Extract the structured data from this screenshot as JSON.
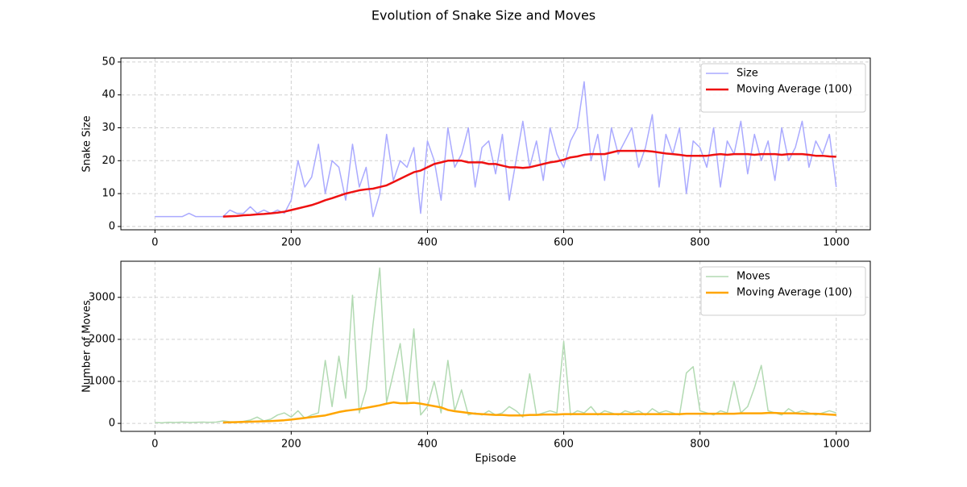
{
  "title": "Evolution of Snake Size and Moves",
  "chart_data": [
    {
      "type": "line",
      "ylabel": "Snake Size",
      "x": [
        0,
        10,
        20,
        30,
        40,
        50,
        60,
        70,
        80,
        90,
        100,
        110,
        120,
        130,
        140,
        150,
        160,
        170,
        180,
        190,
        200,
        210,
        220,
        230,
        240,
        250,
        260,
        270,
        280,
        290,
        300,
        310,
        320,
        330,
        340,
        350,
        360,
        370,
        380,
        390,
        400,
        410,
        420,
        430,
        440,
        450,
        460,
        470,
        480,
        490,
        500,
        510,
        520,
        530,
        540,
        550,
        560,
        570,
        580,
        590,
        600,
        610,
        620,
        630,
        640,
        650,
        660,
        670,
        680,
        690,
        700,
        710,
        720,
        730,
        740,
        750,
        760,
        770,
        780,
        790,
        800,
        810,
        820,
        830,
        840,
        850,
        860,
        870,
        880,
        890,
        900,
        910,
        920,
        930,
        940,
        950,
        960,
        970,
        980,
        990,
        1000
      ],
      "series": [
        {
          "name": "Size",
          "color": "#aaaaff",
          "width": 1.5,
          "values": [
            3,
            3,
            3,
            3,
            3,
            4,
            3,
            3,
            3,
            3,
            3,
            5,
            4,
            4,
            6,
            4,
            5,
            4,
            5,
            4,
            8,
            20,
            12,
            15,
            25,
            10,
            20,
            18,
            8,
            25,
            12,
            18,
            3,
            10,
            28,
            14,
            20,
            18,
            24,
            4,
            26,
            20,
            8,
            30,
            18,
            22,
            30,
            12,
            24,
            26,
            16,
            28,
            8,
            20,
            32,
            18,
            26,
            14,
            30,
            22,
            18,
            26,
            30,
            44,
            20,
            28,
            14,
            30,
            22,
            26,
            30,
            18,
            24,
            34,
            12,
            28,
            22,
            30,
            10,
            26,
            24,
            18,
            30,
            12,
            26,
            22,
            32,
            16,
            28,
            20,
            26,
            14,
            30,
            20,
            24,
            32,
            18,
            26,
            22,
            28,
            12
          ]
        },
        {
          "name": "Moving Average (100)",
          "color": "#ee1111",
          "width": 2.5,
          "values": [
            null,
            null,
            null,
            null,
            null,
            null,
            null,
            null,
            null,
            null,
            3,
            3.1,
            3.2,
            3.4,
            3.5,
            3.7,
            3.8,
            4,
            4.2,
            4.5,
            5,
            5.5,
            6,
            6.5,
            7.2,
            8,
            8.6,
            9.3,
            10,
            10.5,
            11,
            11.3,
            11.5,
            12,
            12.5,
            13.5,
            14.5,
            15.5,
            16.5,
            17,
            18,
            19,
            19.5,
            20,
            20,
            20,
            19.5,
            19.5,
            19.5,
            19,
            19,
            18.5,
            18,
            18,
            17.8,
            18,
            18.5,
            19,
            19.5,
            19.8,
            20.3,
            21,
            21.3,
            21.8,
            22,
            22,
            22,
            22.5,
            23,
            23,
            23,
            23,
            23,
            22.8,
            22.5,
            22.2,
            22,
            21.8,
            21.5,
            21.5,
            21.5,
            21.5,
            21.8,
            22,
            21.8,
            22,
            22,
            22,
            21.8,
            22,
            22,
            22,
            21.8,
            22,
            22,
            22,
            21.8,
            21.5,
            21.5,
            21.3,
            21.2
          ]
        }
      ],
      "xlim": [
        -50,
        1050
      ],
      "ylim": [
        -1,
        51.2
      ],
      "xticks": [
        0,
        200,
        400,
        600,
        800,
        1000
      ],
      "yticks": [
        0,
        10,
        20,
        30,
        40,
        50
      ],
      "grid": true,
      "legend": "upper right"
    },
    {
      "type": "line",
      "xlabel": "Episode",
      "ylabel": "Number of Moves",
      "x": [
        0,
        10,
        20,
        30,
        40,
        50,
        60,
        70,
        80,
        90,
        100,
        110,
        120,
        130,
        140,
        150,
        160,
        170,
        180,
        190,
        200,
        210,
        220,
        230,
        240,
        250,
        260,
        270,
        280,
        290,
        300,
        310,
        320,
        330,
        340,
        350,
        360,
        370,
        380,
        390,
        400,
        410,
        420,
        430,
        440,
        450,
        460,
        470,
        480,
        490,
        500,
        510,
        520,
        530,
        540,
        550,
        560,
        570,
        580,
        590,
        600,
        610,
        620,
        630,
        640,
        650,
        660,
        670,
        680,
        690,
        700,
        710,
        720,
        730,
        740,
        750,
        760,
        770,
        780,
        790,
        800,
        810,
        820,
        830,
        840,
        850,
        860,
        870,
        880,
        890,
        900,
        910,
        920,
        930,
        940,
        950,
        960,
        970,
        980,
        990,
        1000
      ],
      "series": [
        {
          "name": "Moves",
          "color": "#b2dab2",
          "width": 1.5,
          "values": [
            20,
            15,
            25,
            20,
            30,
            20,
            25,
            30,
            25,
            30,
            60,
            40,
            30,
            50,
            80,
            150,
            60,
            100,
            200,
            250,
            150,
            300,
            120,
            200,
            250,
            1500,
            400,
            1600,
            600,
            3050,
            250,
            800,
            2350,
            3700,
            500,
            1200,
            1900,
            500,
            2250,
            200,
            400,
            1000,
            250,
            1500,
            300,
            800,
            200,
            250,
            200,
            300,
            200,
            250,
            400,
            300,
            150,
            1180,
            200,
            250,
            300,
            250,
            1950,
            200,
            300,
            250,
            400,
            200,
            300,
            250,
            200,
            300,
            250,
            300,
            200,
            350,
            250,
            300,
            250,
            200,
            1200,
            1350,
            300,
            250,
            200,
            300,
            250,
            1000,
            250,
            400,
            850,
            1380,
            300,
            250,
            200,
            350,
            250,
            300,
            250,
            200,
            250,
            300,
            250
          ]
        },
        {
          "name": "Moving Average (100)",
          "color": "#ffa500",
          "width": 2.5,
          "values": [
            null,
            null,
            null,
            null,
            null,
            null,
            null,
            null,
            null,
            null,
            20,
            25,
            30,
            35,
            40,
            45,
            50,
            55,
            65,
            75,
            90,
            110,
            130,
            150,
            170,
            190,
            230,
            270,
            300,
            320,
            340,
            370,
            400,
            430,
            470,
            500,
            480,
            480,
            490,
            470,
            440,
            410,
            380,
            320,
            290,
            270,
            250,
            230,
            220,
            210,
            200,
            200,
            190,
            190,
            190,
            200,
            200,
            210,
            210,
            210,
            220,
            220,
            220,
            220,
            220,
            220,
            220,
            220,
            220,
            220,
            220,
            220,
            220,
            220,
            220,
            220,
            220,
            220,
            230,
            230,
            230,
            230,
            230,
            230,
            230,
            230,
            240,
            240,
            240,
            240,
            250,
            250,
            240,
            240,
            240,
            230,
            230,
            230,
            220,
            210,
            200
          ]
        }
      ],
      "xlim": [
        -50,
        1050
      ],
      "ylim": [
        -190,
        3860
      ],
      "xticks": [
        0,
        200,
        400,
        600,
        800,
        1000
      ],
      "yticks": [
        0,
        1000,
        2000,
        3000
      ],
      "grid": true,
      "legend": "upper right"
    }
  ]
}
